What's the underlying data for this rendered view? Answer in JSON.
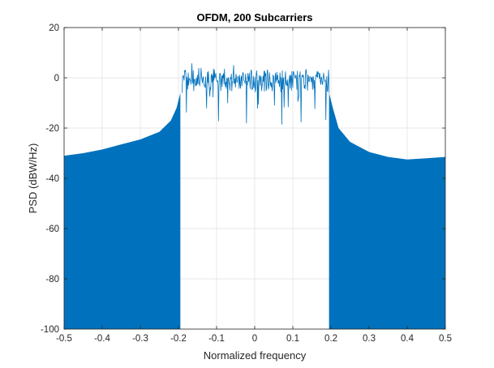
{
  "chart_data": {
    "type": "line",
    "title": "OFDM, 200 Subcarriers",
    "xlabel": "Normalized frequency",
    "ylabel": "PSD (dBW/Hz)",
    "xlim": [
      -0.5,
      0.5
    ],
    "ylim": [
      -100,
      20
    ],
    "xticks": [
      -0.5,
      -0.4,
      -0.3,
      -0.2,
      -0.1,
      0,
      0.1,
      0.2,
      0.3,
      0.4,
      0.5
    ],
    "xtick_labels": [
      "-0.5",
      "-0.4",
      "-0.3",
      "-0.2",
      "-0.1",
      "0",
      "0.1",
      "0.2",
      "0.3",
      "0.4",
      "0.5"
    ],
    "yticks": [
      -100,
      -80,
      -60,
      -40,
      -20,
      0,
      20
    ],
    "ytick_labels": [
      "-100",
      "-80",
      "-60",
      "-40",
      "-20",
      "0",
      "20"
    ],
    "grid": true,
    "series_color": "#0072BD",
    "passband": {
      "x_range": [
        -0.19,
        0.195
      ],
      "mean_db": -1,
      "peak_db": 6,
      "min_db": -19
    },
    "sidelobe_envelope": {
      "x": [
        -0.5,
        -0.45,
        -0.4,
        -0.35,
        -0.3,
        -0.25,
        -0.22,
        -0.205,
        -0.195,
        0.195,
        0.205,
        0.22,
        0.25,
        0.3,
        0.35,
        0.4,
        0.45,
        0.5
      ],
      "y": [
        -31,
        -30,
        -28.5,
        -26.5,
        -24.5,
        -21.5,
        -17,
        -12,
        -6,
        -6,
        -12,
        -20,
        -25.5,
        -29.5,
        -31.5,
        -32.5,
        -32,
        -31.5
      ]
    },
    "floor_db": -100
  }
}
